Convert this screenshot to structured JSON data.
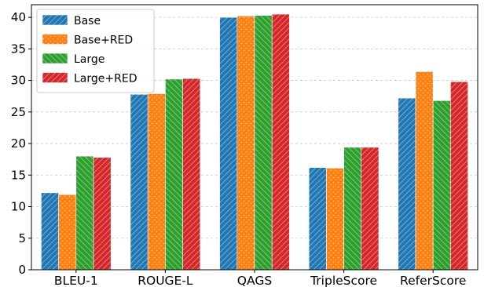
{
  "chart_data": {
    "type": "bar",
    "title": "",
    "xlabel": "",
    "ylabel": "",
    "categories": [
      "BLEU-1",
      "ROUGE-L",
      "QAGS",
      "TripleScore",
      "ReferScore"
    ],
    "series": [
      {
        "name": "Base",
        "color": "#1f77b4",
        "pattern": "diagonal-hatch",
        "values": [
          12.2,
          27.8,
          40.0,
          16.2,
          27.2
        ]
      },
      {
        "name": "Base+RED",
        "color": "#ff7f0e",
        "pattern": "dots",
        "values": [
          11.9,
          27.9,
          40.2,
          16.1,
          31.4
        ]
      },
      {
        "name": "Large",
        "color": "#2ca02c",
        "pattern": "back-diagonal-hatch",
        "values": [
          18.0,
          30.2,
          40.3,
          19.4,
          26.8
        ]
      },
      {
        "name": "Large+RED",
        "color": "#d62728",
        "pattern": "diagonal-hatch",
        "values": [
          17.8,
          30.3,
          40.5,
          19.4,
          29.8
        ]
      }
    ],
    "ylim": [
      0,
      42
    ],
    "yticks": [
      0,
      5,
      10,
      15,
      20,
      25,
      30,
      35,
      40
    ],
    "grid": true,
    "legend_position": "top-left"
  }
}
